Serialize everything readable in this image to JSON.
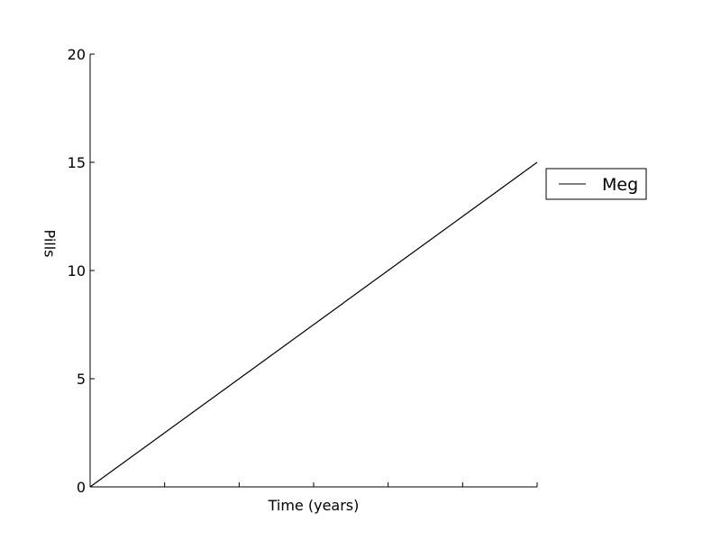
{
  "chart_data": {
    "type": "line",
    "title": "",
    "xlabel": "Time (years)",
    "ylabel": "Pills",
    "xlim": [
      0,
      6
    ],
    "ylim": [
      0,
      20
    ],
    "yticks": [
      0,
      5,
      10,
      15,
      20
    ],
    "ytick_labels": [
      "0",
      "5",
      "10",
      "15",
      "20"
    ],
    "xticks": [
      0,
      1,
      2,
      3,
      4,
      5,
      6
    ],
    "xtick_labels": [
      "",
      "",
      "",
      "",
      "",
      "",
      ""
    ],
    "grid": false,
    "legend_position": "right",
    "series": [
      {
        "name": "Meg",
        "color": "#000000",
        "x": [
          0,
          6
        ],
        "y": [
          0,
          15
        ]
      }
    ]
  }
}
